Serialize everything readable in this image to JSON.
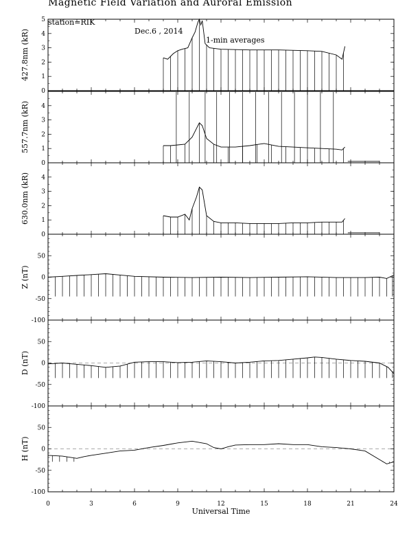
{
  "header": {
    "title": "Magnetic Field Variation and Auroral Emission",
    "station": "station=RIK",
    "date": "Dec.6  , 2014",
    "averaging": "1-min averages"
  },
  "chart_data": {
    "type": "line",
    "xlabel": "Universal Time",
    "xlim": [
      0,
      24
    ],
    "xticks": [
      "0",
      "3",
      "6",
      "9",
      "12",
      "15",
      "18",
      "21",
      "24"
    ],
    "panels": [
      {
        "name": "427.8nm (kR)",
        "ylim": [
          0,
          5
        ],
        "yticks": [
          "0",
          "1",
          "2",
          "3",
          "4",
          "5"
        ],
        "dashed_zero": false,
        "series": [
          [
            8.0,
            2.3
          ],
          [
            8.3,
            2.2
          ],
          [
            8.7,
            2.6
          ],
          [
            9.0,
            2.8
          ],
          [
            9.3,
            2.9
          ],
          [
            9.7,
            3.0
          ],
          [
            10.0,
            3.7
          ],
          [
            10.2,
            4.1
          ],
          [
            10.4,
            4.8
          ],
          [
            10.5,
            5.0
          ],
          [
            10.6,
            4.6
          ],
          [
            10.7,
            4.9
          ],
          [
            10.9,
            3.3
          ],
          [
            11.2,
            3.0
          ],
          [
            12.0,
            2.9
          ],
          [
            14.0,
            2.85
          ],
          [
            16.0,
            2.85
          ],
          [
            18.0,
            2.8
          ],
          [
            19.0,
            2.75
          ],
          [
            20.0,
            2.5
          ],
          [
            20.4,
            2.2
          ],
          [
            20.6,
            3.1
          ]
        ],
        "spikes": [
          8.0,
          8.5,
          9.0,
          9.5,
          10.0,
          10.5,
          11.0,
          11.5,
          12.0,
          12.5,
          13.0,
          13.5,
          14.0,
          14.5,
          15.0,
          15.5,
          16.0,
          16.5,
          17.0,
          17.5,
          18.0,
          18.5,
          19.0,
          19.5,
          20.0,
          20.5
        ],
        "spike_to": 0
      },
      {
        "name": "557.7nm (kR)",
        "ylim": [
          0,
          5
        ],
        "yticks": [
          "0",
          "1",
          "2",
          "3",
          "4"
        ],
        "dashed_zero": false,
        "series": [
          [
            8.0,
            1.2
          ],
          [
            8.5,
            1.2
          ],
          [
            9.0,
            1.25
          ],
          [
            9.5,
            1.3
          ],
          [
            10.0,
            1.8
          ],
          [
            10.3,
            2.4
          ],
          [
            10.5,
            2.8
          ],
          [
            10.7,
            2.6
          ],
          [
            11.0,
            1.7
          ],
          [
            11.5,
            1.3
          ],
          [
            12.0,
            1.1
          ],
          [
            13.0,
            1.1
          ],
          [
            14.0,
            1.2
          ],
          [
            15.0,
            1.35
          ],
          [
            16.0,
            1.15
          ],
          [
            17.0,
            1.1
          ],
          [
            18.0,
            1.05
          ],
          [
            19.0,
            1.0
          ],
          [
            20.0,
            0.95
          ],
          [
            20.4,
            0.9
          ],
          [
            20.6,
            1.1
          ]
        ],
        "baseline_tail": [
          [
            20.8,
            0.1
          ],
          [
            23.0,
            0.1
          ]
        ],
        "tall_spikes": [
          8.9,
          9.8,
          10.9,
          11.7,
          12.6,
          13.5,
          14.4,
          15.3,
          16.2,
          17.1,
          18.0,
          18.9,
          19.8
        ],
        "spikes": [
          8.0,
          8.5,
          9.5,
          10.5,
          11.5,
          12.5,
          13.5,
          14.5,
          15.5,
          16.5,
          17.5,
          18.5,
          19.5,
          20.5
        ],
        "spike_to": 0
      },
      {
        "name": "630.0nm (kR)",
        "ylim": [
          0,
          5
        ],
        "yticks": [
          "0",
          "1",
          "2",
          "3",
          "4"
        ],
        "dashed_zero": false,
        "series": [
          [
            8.0,
            1.3
          ],
          [
            8.5,
            1.2
          ],
          [
            9.0,
            1.2
          ],
          [
            9.5,
            1.4
          ],
          [
            9.8,
            1.0
          ],
          [
            10.0,
            1.8
          ],
          [
            10.3,
            2.6
          ],
          [
            10.5,
            3.3
          ],
          [
            10.7,
            3.1
          ],
          [
            11.0,
            1.3
          ],
          [
            11.5,
            0.9
          ],
          [
            12.0,
            0.8
          ],
          [
            13.0,
            0.8
          ],
          [
            14.0,
            0.75
          ],
          [
            15.0,
            0.75
          ],
          [
            16.0,
            0.75
          ],
          [
            17.0,
            0.8
          ],
          [
            18.0,
            0.8
          ],
          [
            19.0,
            0.85
          ],
          [
            20.0,
            0.85
          ],
          [
            20.4,
            0.85
          ],
          [
            20.6,
            1.1
          ]
        ],
        "baseline_tail": [
          [
            20.8,
            0.1
          ],
          [
            23.0,
            0.1
          ]
        ],
        "spikes": [
          8.0,
          8.5,
          9.0,
          9.5,
          10.0,
          10.5,
          11.0,
          11.5,
          12.0,
          12.5,
          13.0,
          13.5,
          14.0,
          14.5,
          15.0,
          15.5,
          16.0,
          16.5,
          17.0,
          17.5,
          18.0,
          18.5,
          19.0,
          19.5,
          20.0,
          20.5
        ],
        "spike_to": 0
      },
      {
        "name": "Z (nT)",
        "ylim": [
          -100,
          100
        ],
        "yticks": [
          "-100",
          "-50",
          "0",
          "50"
        ],
        "dashed_zero": false,
        "series": [
          [
            0,
            0
          ],
          [
            1,
            2
          ],
          [
            2,
            4
          ],
          [
            3,
            6
          ],
          [
            4,
            8
          ],
          [
            5,
            5
          ],
          [
            6,
            2
          ],
          [
            8,
            0
          ],
          [
            10,
            -1
          ],
          [
            12,
            0
          ],
          [
            14,
            -1
          ],
          [
            16,
            0
          ],
          [
            18,
            1
          ],
          [
            20,
            -1
          ],
          [
            22,
            -1
          ],
          [
            23,
            0
          ],
          [
            23.5,
            -3
          ],
          [
            24,
            5
          ]
        ],
        "spikes": [
          0.0,
          0.5,
          1.0,
          1.5,
          2.0,
          2.5,
          3.0,
          3.5,
          4.0,
          4.5,
          5.0,
          5.5,
          6.0,
          6.5,
          7.0,
          7.5,
          8.0,
          8.5,
          9.0,
          9.5,
          10.0,
          10.5,
          11.0,
          11.5,
          12.0,
          12.5,
          13.0,
          13.5,
          14.0,
          14.5,
          15.0,
          15.5,
          16.0,
          16.5,
          17.0,
          17.5,
          18.0,
          18.5,
          19.0,
          19.5,
          20.0,
          20.5,
          21.0,
          21.5,
          22.0,
          22.5,
          23.0,
          23.5,
          23.9
        ],
        "spike_to": -45
      },
      {
        "name": "D (nT)",
        "ylim": [
          -100,
          100
        ],
        "yticks": [
          "-100",
          "-50",
          "0",
          "50"
        ],
        "dashed_zero": true,
        "series": [
          [
            0,
            -2
          ],
          [
            1,
            0
          ],
          [
            2,
            -3
          ],
          [
            3,
            -6
          ],
          [
            4,
            -10
          ],
          [
            5,
            -7
          ],
          [
            6,
            2
          ],
          [
            7,
            3
          ],
          [
            8,
            3
          ],
          [
            9,
            1
          ],
          [
            10,
            2
          ],
          [
            11,
            5
          ],
          [
            12,
            3
          ],
          [
            13,
            0
          ],
          [
            14,
            2
          ],
          [
            15,
            5
          ],
          [
            16,
            6
          ],
          [
            17,
            9
          ],
          [
            18,
            12
          ],
          [
            18.5,
            14
          ],
          [
            19,
            13
          ],
          [
            20,
            9
          ],
          [
            21,
            6
          ],
          [
            22,
            4
          ],
          [
            23,
            0
          ],
          [
            23.6,
            -10
          ],
          [
            24,
            -25
          ]
        ],
        "spikes": [
          0.0,
          0.5,
          1.0,
          1.5,
          2.0,
          2.5,
          3.0,
          3.5,
          4.0,
          4.5,
          5.0,
          5.5,
          6.0,
          6.5,
          7.0,
          7.5,
          8.0,
          8.5,
          9.0,
          9.5,
          10.0,
          10.5,
          11.0,
          11.5,
          12.0,
          12.5,
          13.0,
          13.5,
          14.0,
          14.5,
          15.0,
          15.5,
          16.0,
          16.5,
          17.0,
          17.5,
          18.0,
          18.5,
          19.0,
          19.5,
          20.0,
          20.5,
          21.0,
          21.5,
          22.0,
          22.5,
          23.0,
          23.5,
          23.9
        ],
        "spike_to": -35
      },
      {
        "name": "H (nT)",
        "ylim": [
          -100,
          100
        ],
        "yticks": [
          "-100",
          "-50",
          "0",
          "50"
        ],
        "dashed_zero": true,
        "series": [
          [
            0,
            -15
          ],
          [
            1,
            -17
          ],
          [
            2,
            -22
          ],
          [
            2.5,
            -18
          ],
          [
            3,
            -15
          ],
          [
            4,
            -10
          ],
          [
            5,
            -5
          ],
          [
            6,
            -3
          ],
          [
            7,
            3
          ],
          [
            8,
            8
          ],
          [
            9,
            14
          ],
          [
            10,
            18
          ],
          [
            11,
            12
          ],
          [
            11.5,
            3
          ],
          [
            12,
            0
          ],
          [
            12.5,
            5
          ],
          [
            13,
            9
          ],
          [
            14,
            10
          ],
          [
            15,
            10
          ],
          [
            16,
            12
          ],
          [
            17,
            10
          ],
          [
            18,
            10
          ],
          [
            19,
            5
          ],
          [
            20,
            3
          ],
          [
            21,
            0
          ],
          [
            22,
            -5
          ],
          [
            23,
            -25
          ],
          [
            23.5,
            -35
          ],
          [
            24,
            -30
          ]
        ],
        "spikes": [
          0.3,
          0.8,
          1.3,
          1.8,
          23.2,
          23.7
        ],
        "spike_to": -30
      }
    ]
  }
}
